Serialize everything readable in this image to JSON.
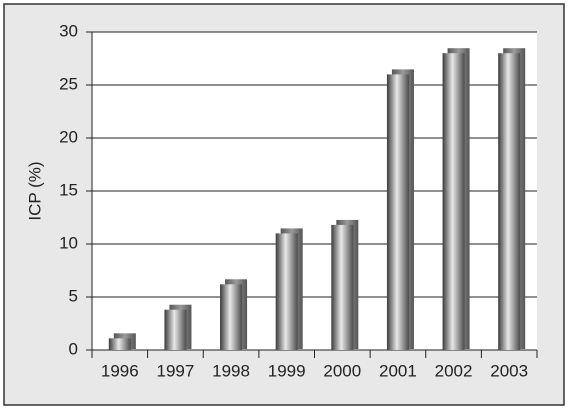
{
  "chart_data": {
    "type": "bar",
    "y_label": "ICP (%)",
    "categories": [
      "1996",
      "1997",
      "1998",
      "1999",
      "2000",
      "2001",
      "2002",
      "2003"
    ],
    "values": [
      1.1,
      3.8,
      6.2,
      11,
      11.8,
      26,
      28,
      28
    ],
    "color": "#9a9a9a",
    "ylim": [
      0,
      30
    ],
    "yticks": [
      0,
      5,
      10,
      15,
      20,
      25,
      30
    ],
    "grid": true
  }
}
